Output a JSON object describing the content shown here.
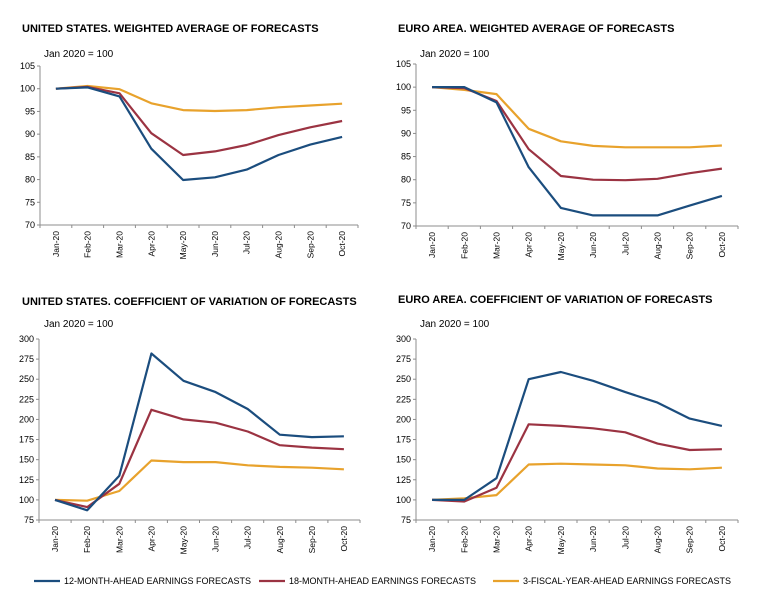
{
  "colors": {
    "s12": "#1b4d7e",
    "s18": "#9b3342",
    "s3fy": "#e8a22c"
  },
  "legend": [
    {
      "label": "12-MONTH-AHEAD EARNINGS FORECASTS",
      "color_key": "s12"
    },
    {
      "label": "18-MONTH-AHEAD EARNINGS FORECASTS",
      "color_key": "s18"
    },
    {
      "label": "3-FISCAL-YEAR-AHEAD EARNINGS FORECASTS",
      "color_key": "s3fy"
    }
  ],
  "chart_data": [
    {
      "type": "line",
      "title": "UNITED STATES. WEIGHTED AVERAGE OF FORECASTS",
      "subtitle": "Jan 2020 = 100",
      "categories": [
        "Jan-20",
        "Feb-20",
        "Mar-20",
        "Apr-20",
        "May-20",
        "Jun-20",
        "Jul-20",
        "Aug-20",
        "Sep-20",
        "Oct-20"
      ],
      "ylim": [
        70,
        105
      ],
      "yticks": [
        70,
        75,
        80,
        85,
        90,
        95,
        100,
        105
      ],
      "series": [
        {
          "name": "12-MONTH-AHEAD EARNINGS FORECASTS",
          "color_key": "s12",
          "values": [
            100,
            100.3,
            98.3,
            86.8,
            79.9,
            80.5,
            82.2,
            85.4,
            87.7,
            89.4
          ]
        },
        {
          "name": "18-MONTH-AHEAD EARNINGS FORECASTS",
          "color_key": "s18",
          "values": [
            100,
            100.4,
            99.0,
            90.2,
            85.4,
            86.2,
            87.6,
            89.8,
            91.5,
            92.9
          ]
        },
        {
          "name": "3-FISCAL-YEAR-AHEAD EARNINGS FORECASTS",
          "color_key": "s3fy",
          "values": [
            100,
            100.6,
            99.9,
            96.8,
            95.3,
            95.1,
            95.3,
            95.9,
            96.3,
            96.7
          ]
        }
      ]
    },
    {
      "type": "line",
      "title": "EURO AREA. WEIGHTED AVERAGE OF FORECASTS",
      "subtitle": "Jan 2020 = 100",
      "categories": [
        "Jan-20",
        "Feb-20",
        "Mar-20",
        "Apr-20",
        "May-20",
        "Jun-20",
        "Jul-20",
        "Aug-20",
        "Sep-20",
        "Oct-20"
      ],
      "ylim": [
        70,
        105
      ],
      "yticks": [
        70,
        75,
        80,
        85,
        90,
        95,
        100,
        105
      ],
      "series": [
        {
          "name": "12-MONTH-AHEAD EARNINGS FORECASTS",
          "color_key": "s12",
          "values": [
            100,
            100,
            96.7,
            82.7,
            73.9,
            72.3,
            72.3,
            72.3,
            74.4,
            76.5
          ]
        },
        {
          "name": "18-MONTH-AHEAD EARNINGS FORECASTS",
          "color_key": "s18",
          "values": [
            100,
            99.8,
            97.0,
            86.6,
            80.8,
            80.0,
            79.9,
            80.2,
            81.4,
            82.4
          ]
        },
        {
          "name": "3-FISCAL-YEAR-AHEAD EARNINGS FORECASTS",
          "color_key": "s3fy",
          "values": [
            100,
            99.4,
            98.5,
            91.0,
            88.3,
            87.3,
            87.0,
            87.0,
            87.0,
            87.4
          ]
        }
      ]
    },
    {
      "type": "line",
      "title": "UNITED STATES. COEFFICIENT OF VARIATION OF FORECASTS",
      "subtitle": "Jan 2020 = 100",
      "categories": [
        "Jan-20",
        "Feb-20",
        "Mar-20",
        "Apr-20",
        "May-20",
        "Jun-20",
        "Jul-20",
        "Aug-20",
        "Sep-20",
        "Oct-20"
      ],
      "ylim": [
        75,
        300
      ],
      "yticks": [
        75,
        100,
        125,
        150,
        175,
        200,
        225,
        250,
        275,
        300
      ],
      "series": [
        {
          "name": "12-MONTH-AHEAD EARNINGS FORECASTS",
          "color_key": "s12",
          "values": [
            100,
            87,
            130,
            282,
            248,
            234,
            213,
            181,
            178,
            179
          ]
        },
        {
          "name": "18-MONTH-AHEAD EARNINGS FORECASTS",
          "color_key": "s18",
          "values": [
            100,
            91,
            120,
            212,
            200,
            196,
            185,
            168,
            165,
            163
          ]
        },
        {
          "name": "3-FISCAL-YEAR-AHEAD EARNINGS FORECASTS",
          "color_key": "s3fy",
          "values": [
            100,
            99,
            111,
            149,
            147,
            147,
            143,
            141,
            140,
            138
          ]
        }
      ]
    },
    {
      "type": "line",
      "title": "EURO AREA. COEFFICIENT OF VARIATION OF FORECASTS",
      "subtitle": "Jan 2020 = 100",
      "categories": [
        "Jan-20",
        "Feb-20",
        "Mar-20",
        "Apr-20",
        "May-20",
        "Jun-20",
        "Jul-20",
        "Aug-20",
        "Sep-20",
        "Oct-20"
      ],
      "ylim": [
        75,
        300
      ],
      "yticks": [
        75,
        100,
        125,
        150,
        175,
        200,
        225,
        250,
        275,
        300
      ],
      "series": [
        {
          "name": "12-MONTH-AHEAD EARNINGS FORECASTS",
          "color_key": "s12",
          "values": [
            100,
            100,
            127,
            250,
            259,
            248,
            234,
            221,
            201,
            192
          ]
        },
        {
          "name": "18-MONTH-AHEAD EARNINGS FORECASTS",
          "color_key": "s18",
          "values": [
            100,
            98,
            115,
            194,
            192,
            189,
            184,
            170,
            162,
            163
          ]
        },
        {
          "name": "3-FISCAL-YEAR-AHEAD EARNINGS FORECASTS",
          "color_key": "s3fy",
          "values": [
            100,
            102,
            106,
            144,
            145,
            144,
            143,
            139,
            138,
            140
          ]
        }
      ]
    }
  ]
}
